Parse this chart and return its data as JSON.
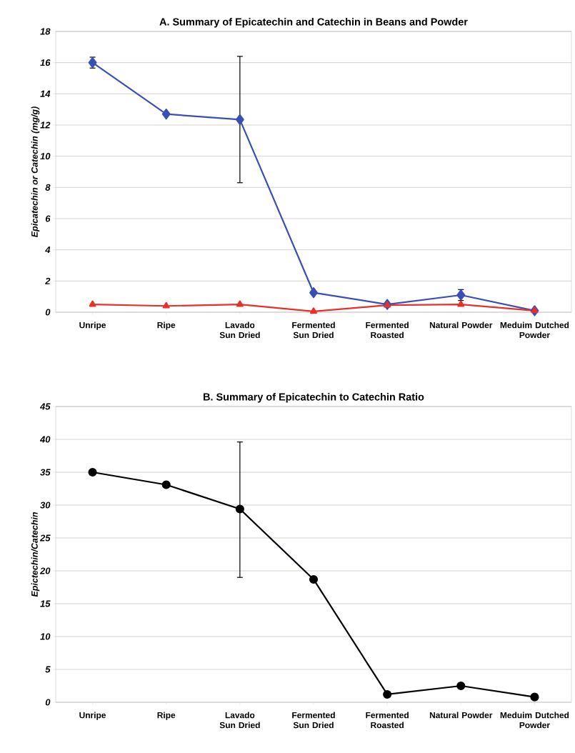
{
  "chart_data": [
    {
      "type": "line",
      "title": "A. Summary of Epicatechin and Catechin in Beans and Powder",
      "ylabel": "Epicatechin or Catechin (mg/g)",
      "categories": [
        "Unripe",
        "Ripe",
        "Lavado Sun Dried",
        "Fermented Sun Dried",
        "Fermented Roasted",
        "Natural Powder",
        "Meduim Dutched Powder"
      ],
      "series": [
        {
          "color": "#3a4fb5",
          "marker": "diamond",
          "values": [
            16.0,
            12.7,
            12.35,
            1.25,
            0.5,
            1.1,
            0.1
          ],
          "errors": [
            0.35,
            null,
            [
              8.3,
              16.4
            ],
            null,
            null,
            0.35,
            null
          ]
        },
        {
          "color": "#e8302a",
          "marker": "triangle",
          "values": [
            0.5,
            0.4,
            0.5,
            0.05,
            0.45,
            0.5,
            0.1
          ]
        }
      ],
      "ylim": [
        0,
        18
      ],
      "yticks": [
        0,
        2,
        4,
        6,
        8,
        10,
        12,
        14,
        16,
        18
      ],
      "grid": "y"
    },
    {
      "type": "line",
      "title": "B. Summary of Epicatechin to Catechin Ratio",
      "ylabel": "Epictechin/Catechin",
      "categories": [
        "Unripe",
        "Ripe",
        "Lavado Sun Dried",
        "Fermented Sun Dried",
        "Fermented Roasted",
        "Natural Powder",
        "Meduim Dutched Powder"
      ],
      "series": [
        {
          "color": "#000000",
          "marker": "circle",
          "values": [
            35,
            33.1,
            29.4,
            18.7,
            1.2,
            2.5,
            0.8
          ],
          "errors": [
            null,
            null,
            [
              19,
              39.6
            ],
            null,
            null,
            null,
            null
          ]
        }
      ],
      "ylim": [
        0,
        45
      ],
      "yticks": [
        0,
        5,
        10,
        15,
        20,
        25,
        30,
        35,
        40,
        45
      ],
      "grid": "y"
    }
  ]
}
